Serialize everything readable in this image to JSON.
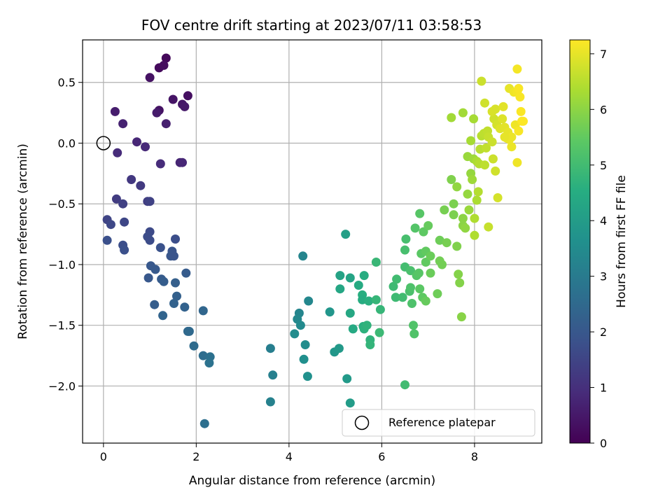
{
  "chart_data": {
    "type": "scatter",
    "title": "FOV centre drift starting at 2023/07/11 03:58:53",
    "xlabel": "Angular distance from reference (arcmin)",
    "ylabel": "Rotation from reference (arcmin)",
    "xlim": [
      -0.45,
      9.45
    ],
    "ylim": [
      -2.47,
      0.85
    ],
    "x_ticks": [
      0,
      2,
      4,
      6,
      8
    ],
    "x_tick_labels": [
      "0",
      "2",
      "4",
      "6",
      "8"
    ],
    "y_ticks": [
      0.5,
      0.0,
      -0.5,
      -1.0,
      -1.5,
      -2.0
    ],
    "y_tick_labels": [
      "0.5",
      "0.0",
      "−0.5",
      "−1.0",
      "−1.5",
      "−2.0"
    ],
    "grid": true,
    "colormap": "viridis",
    "colorbar": {
      "label": "Hours from first FF file",
      "range": [
        0,
        7.25
      ],
      "ticks": [
        0,
        1,
        2,
        3,
        4,
        5,
        6,
        7
      ],
      "tick_labels": [
        "0",
        "1",
        "2",
        "3",
        "4",
        "5",
        "6",
        "7"
      ]
    },
    "reference_point": {
      "x": 0.0,
      "y": 0.0
    },
    "legend": {
      "position": "lower-right",
      "label": "Reference platepar"
    },
    "series": [
      {
        "color_by": "hours",
        "points": [
          [
            1.35,
            0.7,
            0.15
          ],
          [
            1.2,
            0.62,
            0.2
          ],
          [
            1.3,
            0.64,
            0.25
          ],
          [
            1.0,
            0.54,
            0.35
          ],
          [
            1.82,
            0.39,
            0.3
          ],
          [
            1.5,
            0.36,
            0.4
          ],
          [
            1.7,
            0.32,
            0.45
          ],
          [
            1.75,
            0.3,
            0.5
          ],
          [
            1.2,
            0.27,
            0.35
          ],
          [
            0.25,
            0.26,
            0.6
          ],
          [
            1.15,
            0.25,
            0.55
          ],
          [
            0.42,
            0.16,
            0.7
          ],
          [
            1.35,
            0.16,
            0.65
          ],
          [
            0.72,
            0.01,
            0.8
          ],
          [
            0.9,
            -0.03,
            0.85
          ],
          [
            0.3,
            -0.08,
            0.9
          ],
          [
            1.65,
            -0.16,
            0.75
          ],
          [
            1.7,
            -0.16,
            0.8
          ],
          [
            1.23,
            -0.17,
            0.9
          ],
          [
            0.6,
            -0.3,
            1.2
          ],
          [
            0.8,
            -0.35,
            1.25
          ],
          [
            0.28,
            -0.46,
            1.3
          ],
          [
            0.95,
            -0.48,
            1.35
          ],
          [
            0.42,
            -0.5,
            1.4
          ],
          [
            1.0,
            -0.48,
            1.45
          ],
          [
            0.08,
            -0.63,
            1.5
          ],
          [
            0.45,
            -0.65,
            1.55
          ],
          [
            0.16,
            -0.67,
            1.6
          ],
          [
            1.0,
            -0.73,
            1.65
          ],
          [
            0.95,
            -0.77,
            1.7
          ],
          [
            1.55,
            -0.79,
            1.75
          ],
          [
            1.0,
            -0.8,
            1.7
          ],
          [
            0.08,
            -0.8,
            1.8
          ],
          [
            0.42,
            -0.84,
            1.75
          ],
          [
            1.23,
            -0.86,
            1.85
          ],
          [
            0.45,
            -0.88,
            1.8
          ],
          [
            1.48,
            -0.89,
            1.9
          ],
          [
            1.45,
            -0.93,
            1.95
          ],
          [
            1.52,
            -0.93,
            1.9
          ],
          [
            1.02,
            -1.01,
            2.0
          ],
          [
            1.12,
            -1.04,
            2.05
          ],
          [
            1.78,
            -1.07,
            2.1
          ],
          [
            0.97,
            -1.11,
            2.0
          ],
          [
            1.25,
            -1.12,
            2.1
          ],
          [
            1.3,
            -1.14,
            2.15
          ],
          [
            1.55,
            -1.15,
            2.2
          ],
          [
            1.58,
            -1.26,
            2.25
          ],
          [
            1.52,
            -1.32,
            2.3
          ],
          [
            1.1,
            -1.33,
            2.15
          ],
          [
            1.75,
            -1.35,
            2.3
          ],
          [
            2.15,
            -1.38,
            2.4
          ],
          [
            1.28,
            -1.42,
            2.35
          ],
          [
            1.82,
            -1.55,
            2.45
          ],
          [
            1.85,
            -1.55,
            2.5
          ],
          [
            1.95,
            -1.67,
            2.55
          ],
          [
            2.15,
            -1.75,
            2.6
          ],
          [
            2.3,
            -1.76,
            2.7
          ],
          [
            2.28,
            -1.81,
            2.75
          ],
          [
            2.18,
            -2.31,
            2.65
          ],
          [
            3.6,
            -1.69,
            3.1
          ],
          [
            3.65,
            -1.91,
            3.15
          ],
          [
            3.6,
            -2.13,
            3.2
          ],
          [
            4.3,
            -0.93,
            3.3
          ],
          [
            4.42,
            -1.3,
            3.35
          ],
          [
            4.22,
            -1.4,
            3.3
          ],
          [
            4.18,
            -1.45,
            3.4
          ],
          [
            4.25,
            -1.5,
            3.45
          ],
          [
            4.12,
            -1.57,
            3.5
          ],
          [
            4.35,
            -1.66,
            3.55
          ],
          [
            4.32,
            -1.78,
            3.6
          ],
          [
            4.4,
            -1.92,
            3.65
          ],
          [
            4.88,
            -1.39,
            3.8
          ],
          [
            4.98,
            -1.72,
            3.85
          ],
          [
            5.08,
            -1.69,
            3.9
          ],
          [
            5.25,
            -1.94,
            3.95
          ],
          [
            5.32,
            -2.14,
            4.0
          ],
          [
            5.22,
            -0.75,
            4.1
          ],
          [
            5.1,
            -1.09,
            4.2
          ],
          [
            5.32,
            -1.11,
            4.25
          ],
          [
            5.1,
            -1.2,
            4.3
          ],
          [
            5.32,
            -1.4,
            4.35
          ],
          [
            5.38,
            -1.53,
            4.4
          ],
          [
            5.5,
            -1.17,
            4.45
          ],
          [
            5.62,
            -1.09,
            4.5
          ],
          [
            5.58,
            -1.25,
            4.55
          ],
          [
            5.58,
            -1.29,
            4.5
          ],
          [
            5.72,
            -1.3,
            4.6
          ],
          [
            5.6,
            -1.51,
            4.6
          ],
          [
            5.62,
            -1.53,
            4.65
          ],
          [
            5.68,
            -1.5,
            4.7
          ],
          [
            5.75,
            -1.62,
            4.7
          ],
          [
            5.75,
            -1.66,
            4.75
          ],
          [
            5.88,
            -1.29,
            4.8
          ],
          [
            5.88,
            -0.98,
            4.85
          ],
          [
            5.97,
            -1.37,
            4.8
          ],
          [
            5.95,
            -1.56,
            4.9
          ],
          [
            6.25,
            -1.18,
            4.95
          ],
          [
            6.32,
            -1.12,
            5.0
          ],
          [
            6.3,
            -1.27,
            4.95
          ],
          [
            6.45,
            -1.27,
            5.0
          ],
          [
            6.5,
            -1.02,
            5.05
          ],
          [
            6.5,
            -0.88,
            5.1
          ],
          [
            6.52,
            -0.79,
            5.1
          ],
          [
            6.5,
            -1.99,
            5.0
          ],
          [
            6.62,
            -1.05,
            5.15
          ],
          [
            6.6,
            -1.22,
            5.15
          ],
          [
            6.62,
            -1.19,
            5.2
          ],
          [
            6.65,
            -1.32,
            5.2
          ],
          [
            6.68,
            -1.5,
            5.25
          ],
          [
            6.7,
            -1.57,
            5.25
          ],
          [
            6.75,
            -1.09,
            5.3
          ],
          [
            6.72,
            -0.7,
            5.3
          ],
          [
            6.82,
            -0.58,
            5.35
          ],
          [
            6.8,
            -1.07,
            5.35
          ],
          [
            6.82,
            -1.2,
            5.4
          ],
          [
            6.85,
            -0.91,
            5.4
          ],
          [
            6.88,
            -1.27,
            5.45
          ],
          [
            6.9,
            -0.73,
            5.45
          ],
          [
            6.95,
            -0.89,
            5.5
          ],
          [
            6.95,
            -0.98,
            5.5
          ],
          [
            6.95,
            -1.3,
            5.55
          ],
          [
            7.0,
            -0.68,
            5.55
          ],
          [
            7.05,
            -0.93,
            5.6
          ],
          [
            7.05,
            -1.07,
            5.6
          ],
          [
            7.2,
            -1.24,
            5.65
          ],
          [
            7.25,
            -0.8,
            5.65
          ],
          [
            7.25,
            -0.97,
            5.7
          ],
          [
            7.3,
            -1.0,
            5.7
          ],
          [
            7.35,
            -0.55,
            5.75
          ],
          [
            7.4,
            -0.82,
            5.75
          ],
          [
            7.55,
            -0.5,
            5.8
          ],
          [
            7.5,
            -0.3,
            5.85
          ],
          [
            7.55,
            -0.59,
            5.8
          ],
          [
            7.62,
            -0.85,
            5.85
          ],
          [
            7.65,
            -1.08,
            5.9
          ],
          [
            7.68,
            -1.15,
            5.9
          ],
          [
            7.72,
            -1.43,
            5.95
          ],
          [
            7.75,
            -0.62,
            6.0
          ],
          [
            7.75,
            -0.68,
            6.0
          ],
          [
            7.62,
            -0.36,
            6.05
          ],
          [
            7.8,
            -0.7,
            6.05
          ],
          [
            7.85,
            -0.42,
            6.1
          ],
          [
            7.92,
            -0.25,
            6.1
          ],
          [
            7.88,
            -0.55,
            6.15
          ],
          [
            7.85,
            -0.11,
            6.15
          ],
          [
            7.95,
            -0.3,
            6.2
          ],
          [
            7.98,
            -0.13,
            6.2
          ],
          [
            7.5,
            0.21,
            6.25
          ],
          [
            7.75,
            0.25,
            6.25
          ],
          [
            7.92,
            0.02,
            6.3
          ],
          [
            7.98,
            0.2,
            6.3
          ],
          [
            8.05,
            -0.15,
            6.35
          ],
          [
            8.05,
            -0.47,
            6.35
          ],
          [
            8.0,
            -0.62,
            6.4
          ],
          [
            8.0,
            -0.76,
            6.4
          ],
          [
            8.08,
            -0.4,
            6.45
          ],
          [
            8.1,
            -0.17,
            6.45
          ],
          [
            8.12,
            -0.05,
            6.5
          ],
          [
            8.15,
            0.06,
            6.5
          ],
          [
            8.2,
            0.08,
            6.55
          ],
          [
            8.22,
            -0.18,
            6.55
          ],
          [
            8.25,
            -0.04,
            6.6
          ],
          [
            8.28,
            0.1,
            6.6
          ],
          [
            8.3,
            0.05,
            6.65
          ],
          [
            8.3,
            -0.69,
            6.65
          ],
          [
            8.38,
            0.01,
            6.7
          ],
          [
            8.4,
            -0.13,
            6.7
          ],
          [
            8.42,
            0.2,
            6.75
          ],
          [
            8.45,
            -0.23,
            6.75
          ],
          [
            8.48,
            0.15,
            6.8
          ],
          [
            8.5,
            -0.45,
            6.8
          ],
          [
            8.15,
            0.51,
            6.7
          ],
          [
            8.22,
            0.33,
            6.75
          ],
          [
            8.38,
            0.26,
            6.85
          ],
          [
            8.45,
            0.28,
            6.85
          ],
          [
            8.55,
            0.12,
            6.9
          ],
          [
            8.6,
            0.2,
            6.9
          ],
          [
            8.62,
            0.3,
            6.95
          ],
          [
            8.65,
            0.13,
            6.95
          ],
          [
            8.7,
            0.04,
            7.0
          ],
          [
            8.72,
            0.09,
            7.0
          ],
          [
            8.75,
            0.45,
            7.0
          ],
          [
            8.8,
            0.05,
            7.05
          ],
          [
            8.8,
            -0.03,
            7.05
          ],
          [
            8.85,
            0.42,
            7.1
          ],
          [
            8.88,
            0.15,
            7.1
          ],
          [
            8.92,
            0.42,
            7.15
          ],
          [
            8.92,
            0.61,
            7.15
          ],
          [
            8.95,
            0.45,
            7.2
          ],
          [
            8.95,
            0.1,
            7.2
          ],
          [
            8.98,
            0.38,
            7.2
          ],
          [
            9.0,
            0.26,
            7.22
          ],
          [
            9.02,
            0.18,
            7.22
          ],
          [
            9.05,
            0.18,
            7.24
          ],
          [
            8.92,
            -0.16,
            7.1
          ],
          [
            8.75,
            0.03,
            7.05
          ],
          [
            8.65,
            0.05,
            7.0
          ]
        ]
      }
    ]
  }
}
